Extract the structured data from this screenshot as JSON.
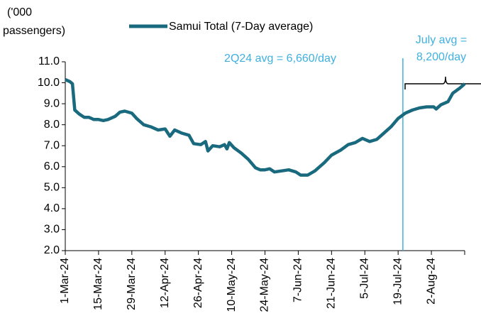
{
  "chart_data": {
    "type": "line",
    "y_label": [
      "('000",
      "passengers)"
    ],
    "series": [
      {
        "name": "Samui Total (7-Day average)",
        "color": "#1a6a7f",
        "x": [
          "1-Mar-24",
          "3-Mar-24",
          "4-Mar-24",
          "5-Mar-24",
          "7-Mar-24",
          "9-Mar-24",
          "11-Mar-24",
          "13-Mar-24",
          "15-Mar-24",
          "17-Mar-24",
          "19-Mar-24",
          "22-Mar-24",
          "24-Mar-24",
          "26-Mar-24",
          "29-Mar-24",
          "31-Mar-24",
          "3-Apr-24",
          "6-Apr-24",
          "9-Apr-24",
          "12-Apr-24",
          "14-Apr-24",
          "16-Apr-24",
          "19-Apr-24",
          "22-Apr-24",
          "24-Apr-24",
          "27-Apr-24",
          "29-Apr-24",
          "30-Apr-24",
          "2-May-24",
          "5-May-24",
          "7-May-24",
          "8-May-24",
          "9-May-24",
          "11-May-24",
          "14-May-24",
          "17-May-24",
          "20-May-24",
          "22-May-24",
          "24-May-24",
          "26-May-24",
          "28-May-24",
          "31-May-24",
          "3-Jun-24",
          "6-Jun-24",
          "8-Jun-24",
          "11-Jun-24",
          "14-Jun-24",
          "18-Jun-24",
          "21-Jun-24",
          "25-Jun-24",
          "28-Jun-24",
          "1-Jul-24",
          "4-Jul-24",
          "7-Jul-24",
          "10-Jul-24",
          "13-Jul-24",
          "16-Jul-24",
          "19-Jul-24",
          "22-Jul-24",
          "25-Jul-24",
          "28-Jul-24",
          "31-Jul-24",
          "3-Aug-24",
          "4-Aug-24",
          "6-Aug-24",
          "9-Aug-24",
          "11-Aug-24",
          "14-Aug-24",
          "16-Aug-24"
        ],
        "values": [
          10.15,
          10.05,
          9.95,
          8.7,
          8.5,
          8.35,
          8.35,
          8.25,
          8.25,
          8.2,
          8.25,
          8.4,
          8.6,
          8.65,
          8.55,
          8.3,
          8.0,
          7.9,
          7.75,
          7.8,
          7.45,
          7.75,
          7.6,
          7.5,
          7.1,
          7.05,
          7.2,
          6.75,
          7.0,
          6.95,
          7.05,
          6.85,
          7.15,
          6.9,
          6.65,
          6.35,
          5.95,
          5.85,
          5.85,
          5.9,
          5.75,
          5.8,
          5.85,
          5.75,
          5.6,
          5.6,
          5.8,
          6.2,
          6.55,
          6.8,
          7.05,
          7.15,
          7.35,
          7.2,
          7.3,
          7.6,
          7.9,
          8.3,
          8.55,
          8.7,
          8.8,
          8.85,
          8.85,
          8.75,
          8.95,
          9.1,
          9.5,
          9.75,
          9.95
        ]
      }
    ],
    "xlim": [
      "1-Mar-24",
      "16-Aug-24"
    ],
    "xticks": [
      "1-Mar-24",
      "15-Mar-24",
      "29-Mar-24",
      "12-Apr-24",
      "26-Apr-24",
      "10-May-24",
      "24-May-24",
      "7-Jun-24",
      "21-Jun-24",
      "5-Jul-24",
      "19-Jul-24",
      "2-Aug-24"
    ],
    "ylim": [
      2,
      11
    ],
    "yticks": [
      {
        "value": 2,
        "label": "2.0"
      },
      {
        "value": 3,
        "label": "3.0"
      },
      {
        "value": 4,
        "label": "4.0"
      },
      {
        "value": 5,
        "label": "5.0"
      },
      {
        "value": 6,
        "label": "6.0"
      },
      {
        "value": 7,
        "label": "7.0"
      },
      {
        "value": 8,
        "label": "8.0"
      },
      {
        "value": 9,
        "label": "9.0"
      },
      {
        "value": 10,
        "label": "10.0"
      },
      {
        "value": 11,
        "label": "11.0"
      }
    ],
    "annotations": [
      {
        "text": "2Q24 avg = 6,660/day"
      },
      {
        "text": [
          "July avg =",
          "8,200/day"
        ]
      }
    ],
    "vline": {
      "x": "21-Jul-24",
      "color": "#3fb0e0"
    }
  }
}
